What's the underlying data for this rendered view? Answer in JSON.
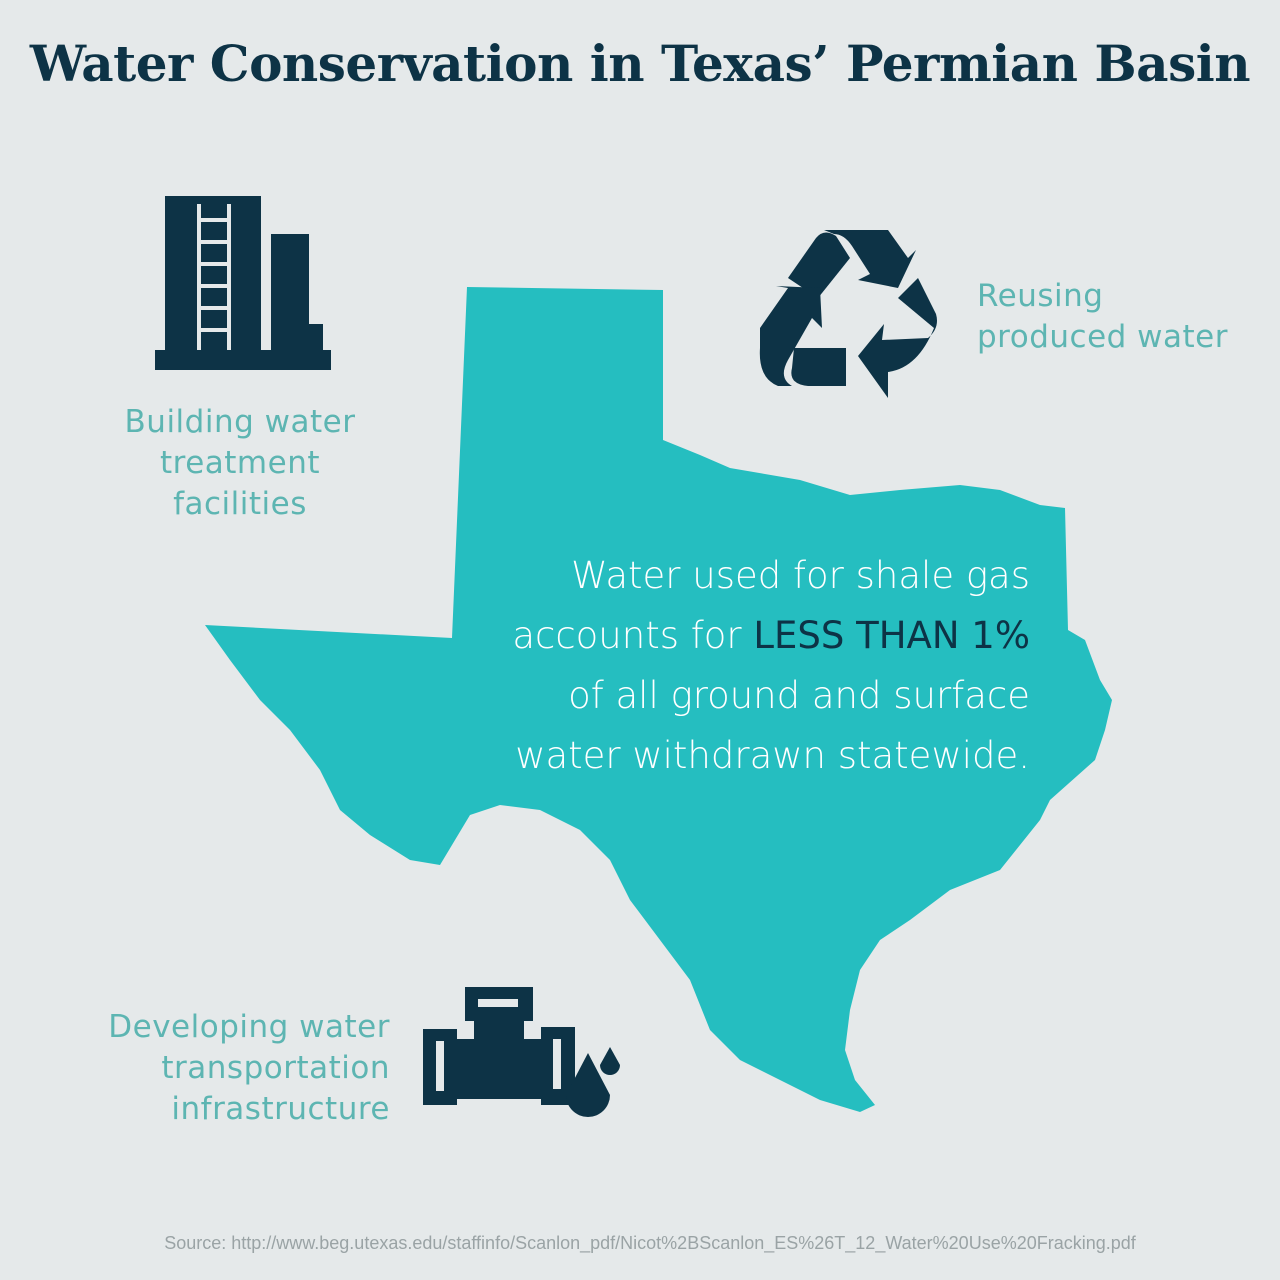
{
  "title": "Water Conservation in Texas’ Permian Basin",
  "items": [
    {
      "label_lines": [
        "Building water",
        "treatment facilities"
      ],
      "icon": "water-treatment-facility-icon"
    },
    {
      "label_lines": [
        "Reusing",
        "produced water"
      ],
      "icon": "recycle-icon"
    },
    {
      "label_lines": [
        "Developing water",
        "transportation",
        "infrastructure"
      ],
      "icon": "pipe-with-droplets-icon"
    }
  ],
  "center_text": {
    "line1": "Water used for shale gas",
    "line2_pre": "accounts for ",
    "line2_bold": "LESS THAN 1%",
    "line3": "of all ground and surface",
    "line4": "water withdrawn statewide."
  },
  "source": "Source: http://www.beg.utexas.edu/staffinfo/Scanlon_pdf/Nicot%2BScanlon_ES%26T_12_Water%20Use%20Fracking.pdf",
  "colors": {
    "background": "#e5e9ea",
    "navy": "#0d3346",
    "teal_map": "#25bec0",
    "teal_text": "#5db5b2"
  }
}
